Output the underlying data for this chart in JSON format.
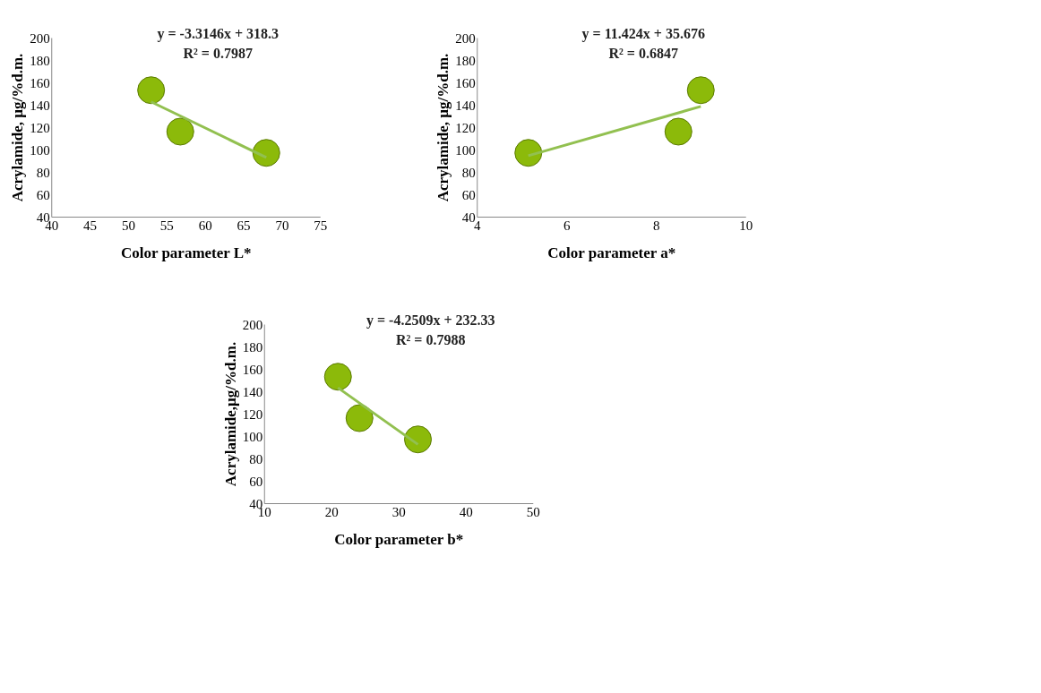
{
  "chart_data": [
    {
      "type": "scatter",
      "xlabel": "Color parameter  L*",
      "ylabel": "Acrylamide, µg/%d.m.",
      "xlim": [
        40,
        75
      ],
      "xticks": [
        40,
        45,
        50,
        55,
        60,
        65,
        70,
        75
      ],
      "ylim": [
        40,
        200
      ],
      "yticks": [
        40,
        60,
        80,
        100,
        120,
        140,
        160,
        180,
        200
      ],
      "grid": false,
      "marker": "circle",
      "annotations": [
        "y = -3.3146x + 318.3",
        "R² = 0.7987"
      ],
      "series": [
        {
          "color": "#8cba0a",
          "x": [
            53,
            56.8,
            68
          ],
          "values": [
            153,
            116,
            97
          ]
        },
        {
          "type": "line",
          "marker": "none",
          "color": "#92c050",
          "x": [
            53,
            68
          ],
          "values": [
            142.6,
            92.9
          ]
        }
      ]
    },
    {
      "type": "scatter",
      "xlabel": "Color parameter a*",
      "ylabel": "Acrylamide, µg/%d.m.",
      "xlim": [
        4,
        10
      ],
      "xticks": [
        4,
        6,
        8,
        10
      ],
      "ylim": [
        40,
        200
      ],
      "yticks": [
        40,
        60,
        80,
        100,
        120,
        140,
        160,
        180,
        200
      ],
      "grid": false,
      "marker": "circle",
      "annotations": [
        "y = 11.424x + 35.676",
        "R² = 0.6847"
      ],
      "series": [
        {
          "color": "#8cba0a",
          "x": [
            5.15,
            8.5,
            9.0
          ],
          "values": [
            97,
            116,
            153
          ]
        },
        {
          "type": "line",
          "marker": "none",
          "color": "#92c050",
          "x": [
            5.15,
            9.0
          ],
          "values": [
            94.5,
            138.5
          ]
        }
      ]
    },
    {
      "type": "scatter",
      "xlabel": "Color parameter b*",
      "ylabel": "Acrylamide,µg/%d.m.",
      "xlim": [
        10,
        50
      ],
      "xticks": [
        10,
        20,
        30,
        40,
        50
      ],
      "ylim": [
        40,
        200
      ],
      "yticks": [
        40,
        60,
        80,
        100,
        120,
        140,
        160,
        180,
        200
      ],
      "grid": false,
      "marker": "circle",
      "annotations": [
        "y = -4.2509x + 232.33",
        "R² = 0.7988"
      ],
      "series": [
        {
          "color": "#8cba0a",
          "x": [
            21,
            24.2,
            32.9
          ],
          "values": [
            153,
            116,
            97
          ]
        },
        {
          "type": "line",
          "marker": "none",
          "color": "#92c050",
          "x": [
            21,
            32.9
          ],
          "values": [
            143.1,
            92.5
          ]
        }
      ]
    }
  ]
}
